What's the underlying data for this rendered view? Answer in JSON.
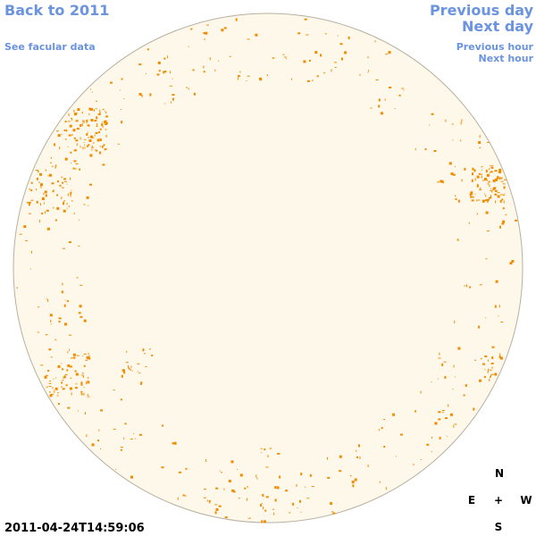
{
  "nav": {
    "back": "Back to 2011",
    "facular": "See facular data",
    "prev_day": "Previous day",
    "next_day": "Next day",
    "prev_hour": "Previous hour",
    "next_hour": "Next hour"
  },
  "timestamp": "2011-04-24T14:59:06",
  "compass": {
    "north": "N",
    "east": "E",
    "center": "+",
    "west": "W",
    "south": "S"
  }
}
